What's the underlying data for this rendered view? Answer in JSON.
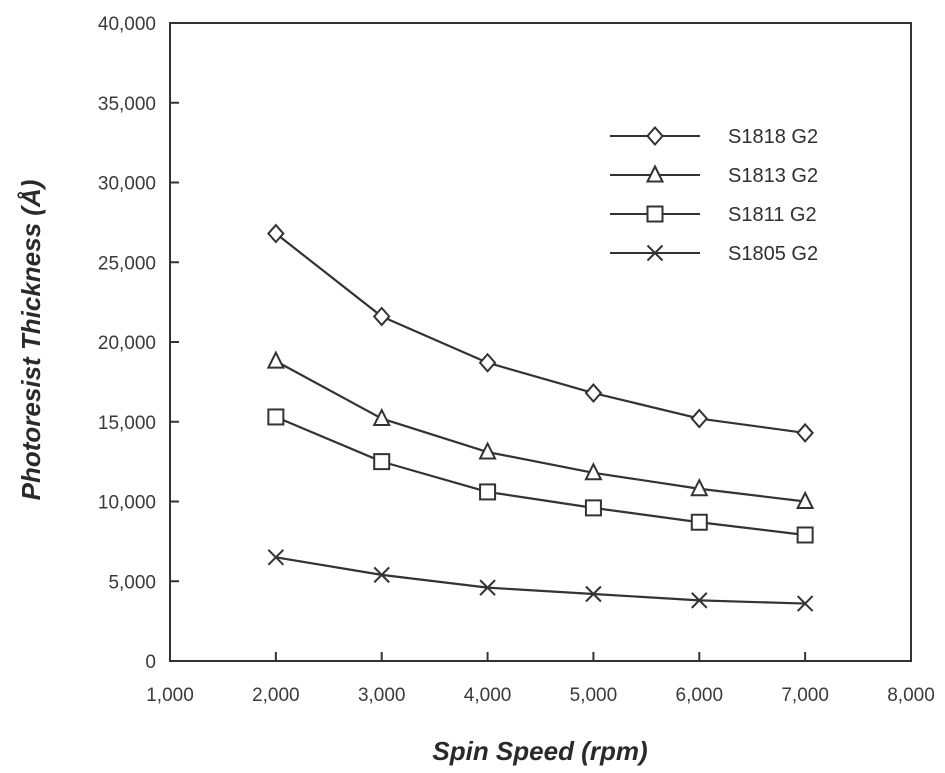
{
  "chart_data": {
    "type": "line",
    "title": "",
    "xlabel": "Spin Speed (rpm)",
    "ylabel": "Photoresist Thickness (Å)",
    "xlim": [
      1000,
      8000
    ],
    "ylim": [
      0,
      40000
    ],
    "x_ticks": [
      1000,
      2000,
      3000,
      4000,
      5000,
      6000,
      7000,
      8000
    ],
    "x_tick_labels": [
      "1,000",
      "2,000",
      "3,000",
      "4,000",
      "5,000",
      "6,000",
      "7,000",
      "8,000"
    ],
    "y_ticks": [
      0,
      5000,
      10000,
      15000,
      20000,
      25000,
      30000,
      35000,
      40000
    ],
    "y_tick_labels": [
      "0",
      "5,000",
      "10,000",
      "15,000",
      "20,000",
      "25,000",
      "30,000",
      "35,000",
      "40,000"
    ],
    "grid": false,
    "legend_position": "top-right",
    "x": [
      2000,
      3000,
      4000,
      5000,
      6000,
      7000
    ],
    "series": [
      {
        "name": "S1818 G2",
        "marker": "diamond",
        "values": [
          26800,
          21600,
          18700,
          16800,
          15200,
          14300
        ]
      },
      {
        "name": "S1813 G2",
        "marker": "triangle",
        "values": [
          18800,
          15200,
          13100,
          11800,
          10800,
          10000
        ]
      },
      {
        "name": "S1811 G2",
        "marker": "square",
        "values": [
          15300,
          12500,
          10600,
          9600,
          8700,
          7900
        ]
      },
      {
        "name": "S1805 G2",
        "marker": "x",
        "values": [
          6500,
          5400,
          4600,
          4200,
          3800,
          3600
        ]
      }
    ],
    "colors": {
      "line": "#333333",
      "marker_fill": "#ffffff",
      "axis": "#333333"
    }
  }
}
